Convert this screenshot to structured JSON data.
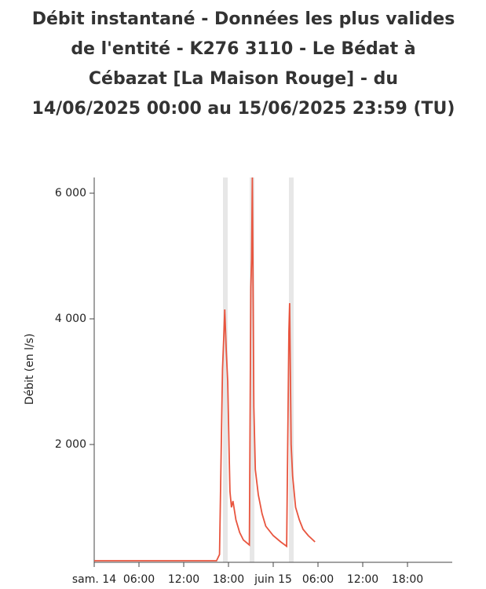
{
  "chart_data": {
    "type": "line",
    "title": "Débit instantané - Données les plus valides de l'entité - K276 3110 - Le Bédat à Cébazat [La Maison Rouge] - du 14/06/2025 00:00 au 15/06/2025 23:59 (TU)",
    "y_label": "Débit (en l/s)",
    "x": [
      0,
      16.4,
      16.8,
      17.2,
      17.4,
      17.5,
      17.7,
      17.9,
      18.1,
      18.2,
      18.4,
      18.6,
      19,
      19.5,
      20,
      20.8,
      21,
      21.1,
      21.2,
      21.4,
      21.6,
      22,
      22.5,
      23,
      24,
      25,
      25.8,
      26.1,
      26.2,
      26.4,
      26.6,
      27,
      27.5,
      28,
      28.7,
      29.6
    ],
    "series": [
      {
        "name": "Débit",
        "color": "#e8553f",
        "values": [
          150,
          150,
          250,
          3200,
          3800,
          4150,
          3500,
          3000,
          1800,
          1250,
          1000,
          1100,
          800,
          600,
          480,
          400,
          4500,
          4950,
          6250,
          2600,
          1600,
          1200,
          900,
          700,
          550,
          450,
          380,
          3800,
          4250,
          2000,
          1500,
          1000,
          800,
          650,
          550,
          450
        ]
      }
    ],
    "xlim": [
      0,
      48
    ],
    "xticks": [
      {
        "value": 0,
        "label": "sam. 14"
      },
      {
        "value": 6,
        "label": "06:00"
      },
      {
        "value": 12,
        "label": "12:00"
      },
      {
        "value": 18,
        "label": "18:00"
      },
      {
        "value": 24,
        "label": "juin 15"
      },
      {
        "value": 30,
        "label": "06:00"
      },
      {
        "value": 36,
        "label": "12:00"
      },
      {
        "value": 42,
        "label": "18:00"
      }
    ],
    "ylim": [
      125,
      6250
    ],
    "yticks": [
      {
        "value": 2000,
        "label": "2 000"
      },
      {
        "value": 4000,
        "label": "4 000"
      },
      {
        "value": 6000,
        "label": "6 000"
      }
    ]
  }
}
